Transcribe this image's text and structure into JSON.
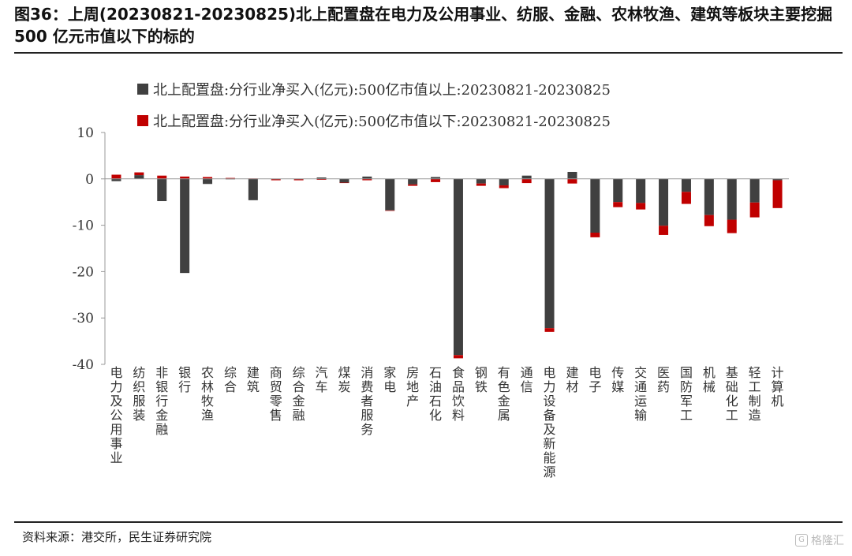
{
  "title": "图36：上周(20230821-20230825)北上配置盘在电力及公用事业、纺服、金融、农林牧渔、建筑等板块主要挖掘 500 亿元市值以下的标的",
  "source": "资料来源：港交所，民生证券研究院",
  "watermark": "格隆汇",
  "colors": {
    "above": "#404040",
    "below": "#c00000",
    "axis": "#999999"
  },
  "chart_data": {
    "type": "bar",
    "title": "",
    "xlabel": "",
    "ylabel": "",
    "ylim": [
      -40,
      10
    ],
    "yticks": [
      10,
      0,
      -10,
      -20,
      -30,
      -40
    ],
    "grid": false,
    "legend_position": "top",
    "categories": [
      "电力及公用事业",
      "纺织服装",
      "非银行金融",
      "银行",
      "农林牧渔",
      "综合",
      "建筑",
      "商贸零售",
      "综合金融",
      "汽车",
      "煤炭",
      "消费者服务",
      "家电",
      "房地产",
      "石油石化",
      "食品饮料",
      "钢铁",
      "有色金属",
      "通信",
      "电力设备及新能源",
      "建材",
      "电子",
      "传媒",
      "交通运输",
      "医药",
      "国防军工",
      "机械",
      "基础化工",
      "轻工制造",
      "计算机"
    ],
    "series": [
      {
        "name": "北上配置盘:分行业净买入(亿元):500亿市值以上:20230821-20230825",
        "values": [
          -0.5,
          0.8,
          -4.8,
          -20.3,
          -1.1,
          -0.1,
          -4.6,
          -0.1,
          -0.1,
          0.3,
          -0.8,
          0.5,
          -6.8,
          -1.2,
          0.4,
          -38.0,
          -1.0,
          -1.4,
          0.7,
          -32.2,
          1.5,
          -11.6,
          -5.0,
          -5.2,
          -10.1,
          -2.8,
          -7.8,
          -8.8,
          -5.1,
          -0.3
        ]
      },
      {
        "name": "北上配置盘:分行业净买入(亿元):500亿市值以下:20230821-20230825",
        "values": [
          0.9,
          0.6,
          0.7,
          0.5,
          0.4,
          0.2,
          0.1,
          -0.2,
          -0.2,
          -0.2,
          -0.1,
          -0.3,
          -0.1,
          -0.3,
          -0.7,
          -0.7,
          -0.5,
          -0.6,
          -0.9,
          -0.8,
          -1.0,
          -1.0,
          -1.1,
          -1.4,
          -2.0,
          -2.6,
          -2.4,
          -2.9,
          -3.2,
          -6.0
        ]
      }
    ]
  }
}
